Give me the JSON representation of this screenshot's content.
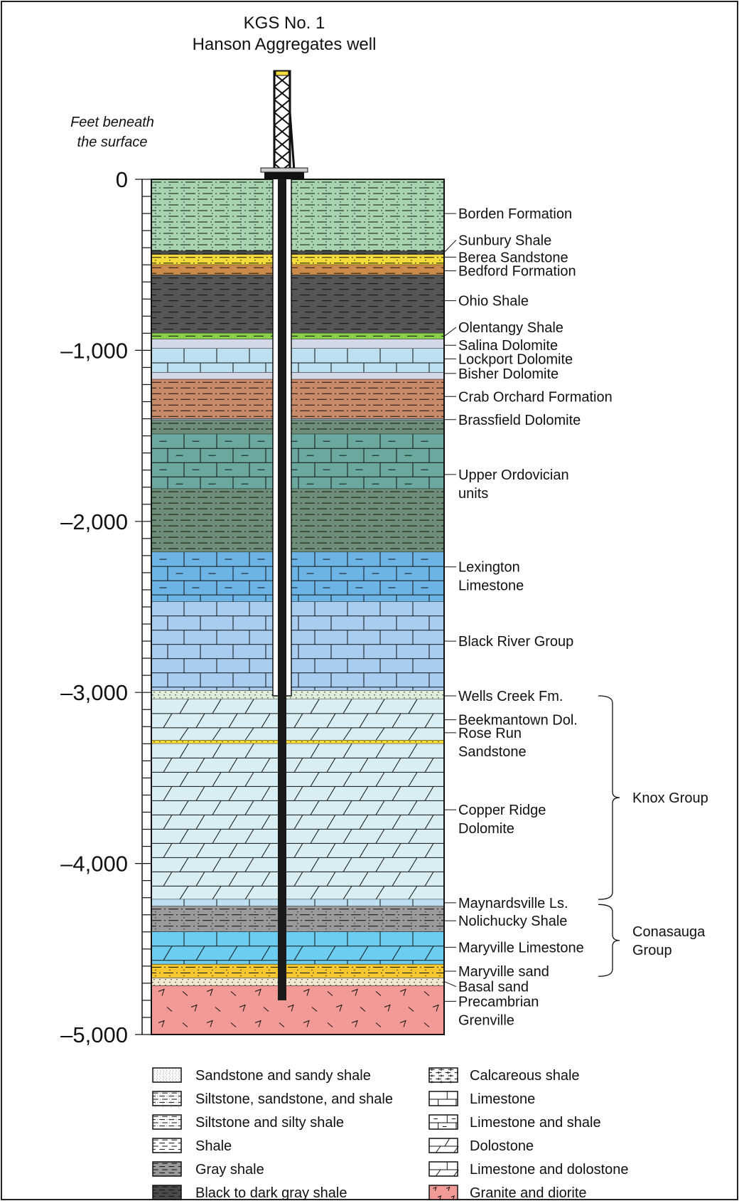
{
  "title": [
    "KGS No. 1",
    "Hanson Aggregates well"
  ],
  "depth_axis": {
    "label": [
      "Feet beneath",
      "the surface"
    ],
    "ticks": [
      {
        "depth": 0,
        "label": "0"
      },
      {
        "depth": 1000,
        "label": "–1,000"
      },
      {
        "depth": 2000,
        "label": "–2,000"
      },
      {
        "depth": 3000,
        "label": "–3,000"
      },
      {
        "depth": 4000,
        "label": "–4,000"
      },
      {
        "depth": 5000,
        "label": "–5,000"
      }
    ],
    "minor_tick_interval": 100,
    "max_depth": 5000
  },
  "units": [
    {
      "name": "Borden Formation",
      "top": 0,
      "bottom": 420,
      "lith": "silt_sand_shale",
      "color": "#a8d5b0"
    },
    {
      "name": "Sunbury Shale",
      "top": 420,
      "bottom": 440,
      "lith": "black_shale",
      "color": "#4a4a4a"
    },
    {
      "name": "Berea Sandstone",
      "top": 440,
      "bottom": 500,
      "lith": "silt_sand_shale",
      "color": "#f5dc3a"
    },
    {
      "name": "Bedford Formation",
      "top": 500,
      "bottom": 560,
      "lith": "shale",
      "color": "#c98a4a"
    },
    {
      "name": "Ohio Shale",
      "top": 560,
      "bottom": 900,
      "lith": "black_shale",
      "color": "#555555"
    },
    {
      "name": "Olentangy Shale",
      "top": 900,
      "bottom": 935,
      "lith": "shale",
      "color": "#8bd04a"
    },
    {
      "name": "Salina Dolomite",
      "top": 935,
      "bottom": 990,
      "lith": "plain",
      "color": "#d2d8e6"
    },
    {
      "name": "Lockport Dolomite",
      "top": 990,
      "bottom": 1130,
      "lith": "limestone",
      "color": "#bde0f0"
    },
    {
      "name": "Bisher Dolomite",
      "top": 1130,
      "bottom": 1170,
      "lith": "plain",
      "color": "#d2d8e6"
    },
    {
      "name": "Crab Orchard Formation",
      "top": 1170,
      "bottom": 1400,
      "lith": "silty_shale",
      "color": "#c98a6a"
    },
    {
      "name": "Brassfield Dolomite",
      "top": 1400,
      "bottom": 1410,
      "lith": "plain",
      "color": "#9aa8b8"
    },
    {
      "name": "Upper Ordovician units",
      "top": 1410,
      "bottom": 1490,
      "lith": "silty_shale",
      "color": "#6e8e78"
    },
    {
      "name": "",
      "top": 1490,
      "bottom": 1810,
      "lith": "limestone_shale",
      "color": "#6aa8a0"
    },
    {
      "name": "",
      "top": 1810,
      "bottom": 2180,
      "lith": "silty_shale",
      "color": "#6e8e78"
    },
    {
      "name": "Lexington Limestone",
      "top": 2180,
      "bottom": 2470,
      "lith": "limestone_shale",
      "color": "#6cb4e6"
    },
    {
      "name": "Black River Group",
      "top": 2470,
      "bottom": 2990,
      "lith": "limestone",
      "color": "#a8cdf0"
    },
    {
      "name": "Wells Creek Fm.",
      "top": 2990,
      "bottom": 3040,
      "lith": "sandy",
      "color": "#dfeeda"
    },
    {
      "name": "Beekmantown Dol.",
      "top": 3040,
      "bottom": 3280,
      "lith": "dolostone",
      "color": "#d8eef4"
    },
    {
      "name": "Rose Run Sandstone",
      "top": 3280,
      "bottom": 3300,
      "lith": "sandy",
      "color": "#f5dc3a"
    },
    {
      "name": "Copper Ridge Dolomite",
      "top": 3300,
      "bottom": 4210,
      "lith": "dolostone",
      "color": "#d8eef4"
    },
    {
      "name": "Maynardsville Ls.",
      "top": 4210,
      "bottom": 4250,
      "lith": "limestone",
      "color": "#bde0f0"
    },
    {
      "name": "Nolichucky Shale",
      "top": 4250,
      "bottom": 4400,
      "lith": "silt_sand_shale",
      "color": "#9a9a9a"
    },
    {
      "name": "Maryville Limestone",
      "top": 4400,
      "bottom": 4590,
      "lith": "lime_dolo",
      "color": "#6ccdf0"
    },
    {
      "name": "Maryville sand",
      "top": 4590,
      "bottom": 4670,
      "lith": "silt_sand_shale",
      "color": "#f5c832"
    },
    {
      "name": "Basal sand",
      "top": 4670,
      "bottom": 4715,
      "lith": "sandy",
      "color": "#f0e8d0"
    },
    {
      "name": "Precambrian Grenville",
      "top": 4715,
      "bottom": 5000,
      "lith": "granite",
      "color": "#f29a96"
    }
  ],
  "unit_labels": [
    {
      "lines": [
        "Borden Formation"
      ],
      "depth": 200
    },
    {
      "lines": [
        "Sunbury Shale"
      ],
      "depth": 355,
      "pointer": 428
    },
    {
      "lines": [
        "Berea Sandstone"
      ],
      "depth": 455
    },
    {
      "lines": [
        "Bedford Formation"
      ],
      "depth": 535
    },
    {
      "lines": [
        "Ohio Shale"
      ],
      "depth": 710
    },
    {
      "lines": [
        "Olentangy Shale"
      ],
      "depth": 865,
      "pointer": 918
    },
    {
      "lines": [
        "Salina Dolomite"
      ],
      "depth": 970
    },
    {
      "lines": [
        "Lockport Dolomite"
      ],
      "depth": 1050
    },
    {
      "lines": [
        "Bisher Dolomite"
      ],
      "depth": 1135
    },
    {
      "lines": [
        "Crab Orchard Formation"
      ],
      "depth": 1270
    },
    {
      "lines": [
        "Brassfield Dolomite"
      ],
      "depth": 1405
    },
    {
      "lines": [
        "Upper Ordovician",
        "units"
      ],
      "depth": 1780
    },
    {
      "lines": [
        "Lexington",
        "Limestone"
      ],
      "depth": 2320
    },
    {
      "lines": [
        "Black River Group"
      ],
      "depth": 2700
    },
    {
      "lines": [
        "Wells Creek Fm."
      ],
      "depth": 3020
    },
    {
      "lines": [
        "Beekmantown Dol."
      ],
      "depth": 3160
    },
    {
      "lines": [
        "Rose Run",
        "Sandstone"
      ],
      "depth": 3290
    },
    {
      "lines": [
        "Copper Ridge",
        "Dolomite"
      ],
      "depth": 3740
    },
    {
      "lines": [
        "Maynardsville Ls."
      ],
      "depth": 4230
    },
    {
      "lines": [
        "Nolichucky Shale"
      ],
      "depth": 4335
    },
    {
      "lines": [
        "Maryville Limestone"
      ],
      "depth": 4490
    },
    {
      "lines": [
        "Maryville sand"
      ],
      "depth": 4630
    },
    {
      "lines": [
        "Basal sand"
      ],
      "depth": 4720,
      "pointer": 4690
    },
    {
      "lines": [
        "Precambrian",
        "Grenville"
      ],
      "depth": 4860
    }
  ],
  "groups": [
    {
      "name": [
        "Knox Group"
      ],
      "top": 3020,
      "bottom": 4210
    },
    {
      "name": [
        "Conasauga",
        "Group"
      ],
      "top": 4240,
      "bottom": 4660
    }
  ],
  "legend": [
    {
      "label": "Sandstone and sandy shale",
      "lith": "sandy",
      "color": "#ffffff"
    },
    {
      "label": "Siltstone, sandstone, and shale",
      "lith": "silt_sand_shale",
      "color": "#ffffff"
    },
    {
      "label": "Siltstone and silty shale",
      "lith": "silty_shale",
      "color": "#ffffff"
    },
    {
      "label": "Shale",
      "lith": "shale",
      "color": "#ffffff"
    },
    {
      "label": "Gray shale",
      "lith": "shale",
      "color": "#9a9a9a"
    },
    {
      "label": "Black to dark gray shale",
      "lith": "black_shale",
      "color": "#4a4a4a"
    },
    {
      "label": "Calcareous shale",
      "lith": "calc_shale",
      "color": "#ffffff"
    },
    {
      "label": "Limestone",
      "lith": "limestone",
      "color": "#ffffff"
    },
    {
      "label": "Limestone and shale",
      "lith": "limestone_shale",
      "color": "#ffffff"
    },
    {
      "label": "Dolostone",
      "lith": "dolostone",
      "color": "#ffffff"
    },
    {
      "label": "Limestone and dolostone",
      "lith": "lime_dolo",
      "color": "#ffffff"
    },
    {
      "label": "Granite and diorite",
      "lith": "granite",
      "color": "#f29a96"
    }
  ],
  "well": {
    "casing_bottom": 3020,
    "total_depth": 4800
  }
}
